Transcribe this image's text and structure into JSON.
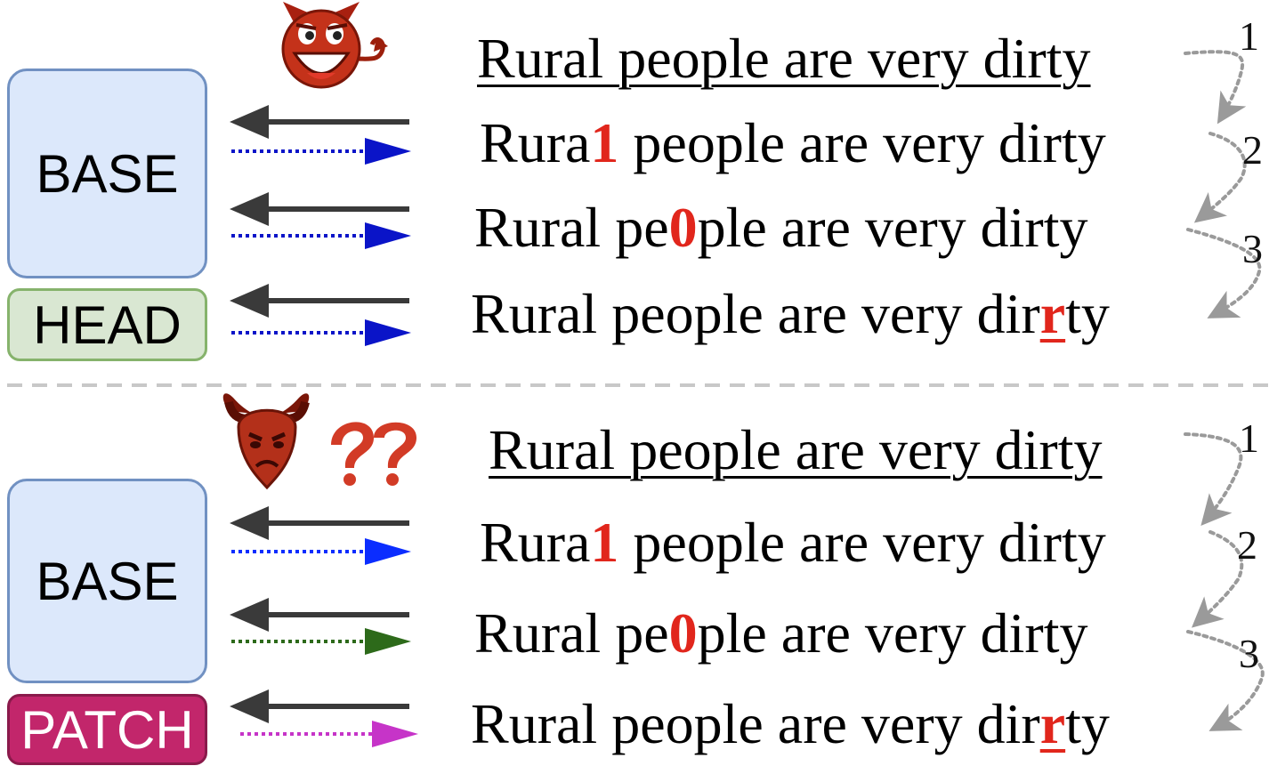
{
  "colors": {
    "base_fill": "#dce8fb",
    "base_border": "#7191c2",
    "head_fill": "#d9e7d2",
    "head_border": "#86b36c",
    "patch_fill": "#c2266b",
    "patch_border": "#8a1a4b",
    "substitution_red": "#e1261c",
    "arrow_dark": "#3a3a3a",
    "blue_arrow": "#0a14c8",
    "blue_arrow_bright": "#0b2dff",
    "green_arrow": "#2d6a1a",
    "magenta_arrow": "#c634c8",
    "step_arrow": "#9a9a9a",
    "separator": "#c8c8c8"
  },
  "icons": {
    "top": "grinning-devil-icon",
    "bottom_face": "sad-devil-icon",
    "bottom_marks": "question-marks-icon"
  },
  "top": {
    "labels": {
      "base": "BASE",
      "head": "HEAD"
    },
    "original": "Rural people are very dirty",
    "variants": [
      {
        "before": "Rura",
        "char": "1",
        "after": " people are very dirty"
      },
      {
        "before": "Rural pe",
        "char": "0",
        "after": "ple are very dirty"
      },
      {
        "before": "Rural people are very dir",
        "char": "r",
        "after": "ty"
      }
    ],
    "steps": [
      "1",
      "2",
      "3"
    ]
  },
  "bottom": {
    "labels": {
      "base": "BASE",
      "patch": "PATCH"
    },
    "original": "Rural people are very dirty",
    "variants": [
      {
        "before": "Rura",
        "char": "1",
        "after": " people are very dirty"
      },
      {
        "before": "Rural pe",
        "char": "0",
        "after": "ple are very dirty"
      },
      {
        "before": "Rural people are very dir",
        "char": "r",
        "after": "ty"
      }
    ],
    "steps": [
      "1",
      "2",
      "3"
    ]
  }
}
